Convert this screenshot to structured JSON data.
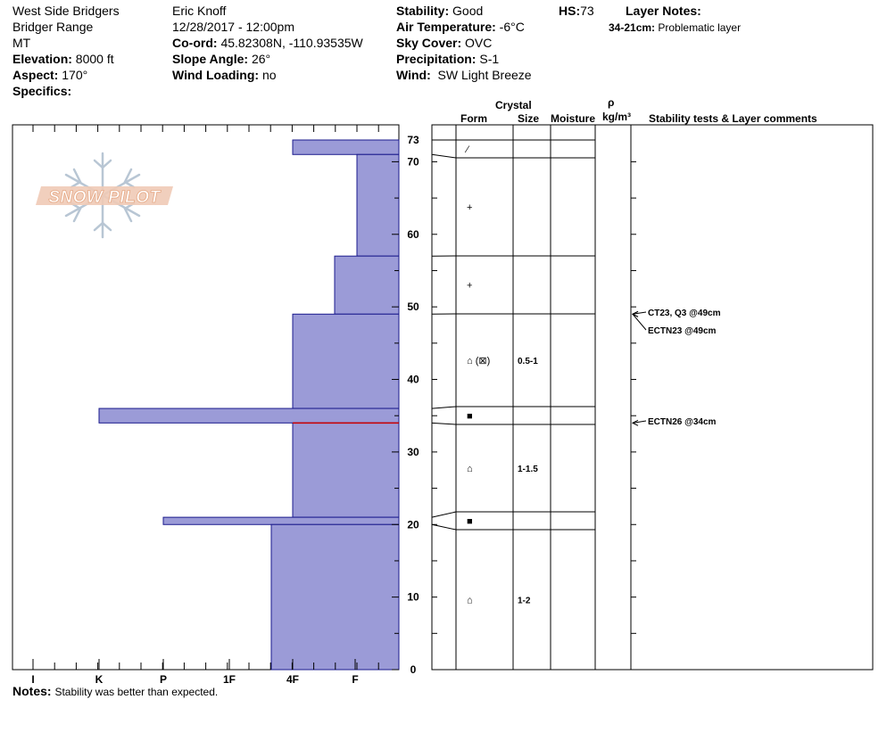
{
  "header": {
    "col1": {
      "location": "West Side Bridgers",
      "range": "Bridger Range",
      "state": "MT",
      "elevation_label": "Elevation:",
      "elevation_value": "8000 ft",
      "aspect_label": "Aspect:",
      "aspect_value": "170°",
      "specifics_label": "Specifics:"
    },
    "col2": {
      "observer": "Eric Knoff",
      "datetime": "12/28/2017 - 12:00pm",
      "coord_label": "Co-ord:",
      "coord_value": "45.82308N, -110.93535W",
      "slope_label": "Slope Angle:",
      "slope_value": "26°",
      "wind_loading_label": "Wind Loading:",
      "wind_loading_value": "no"
    },
    "col3": {
      "stability_label": "Stability:",
      "stability_value": "Good",
      "air_temp_label": "Air Temperature:",
      "air_temp_value": "-6°C",
      "sky_label": "Sky Cover:",
      "sky_value": "OVC",
      "precip_label": "Precipitation:",
      "precip_value": "S-1",
      "wind_label": "Wind:",
      "wind_value": "SW Light Breeze"
    },
    "hs_label": "HS:",
    "hs_value": "73",
    "layer_notes_label": "Layer Notes:",
    "layer_note_range": "34-21cm:",
    "layer_note_text": "Problematic layer"
  },
  "logo_text": "SNOW PILOT",
  "columns": {
    "crystal": "Crystal",
    "form": "Form",
    "size": "Size",
    "moisture": "Moisture",
    "rho": "ρ",
    "density_unit": "kg/m³",
    "stability": "Stability tests & Layer comments"
  },
  "hardness_axis": [
    "I",
    "K",
    "P",
    "1F",
    "4F",
    "F"
  ],
  "height_ticks": [
    "0",
    "10",
    "20",
    "30",
    "40",
    "50",
    "60",
    "70",
    "73"
  ],
  "notes_label": "Notes:",
  "notes_text": "Stability was better than expected.",
  "colors": {
    "profile_fill": "#9b9bd7",
    "profile_stroke": "#1a1a8c",
    "weak_layer": "#cc0000"
  },
  "layers": [
    {
      "top": 73,
      "bottom": 71,
      "hardness": "F+",
      "form": "⁄",
      "size": ""
    },
    {
      "top": 71,
      "bottom": 57,
      "hardness": "F",
      "form": "+",
      "size": ""
    },
    {
      "top": 57,
      "bottom": 49,
      "hardness": "F-",
      "form": "+",
      "size": ""
    },
    {
      "top": 49,
      "bottom": 36,
      "hardness": "4F",
      "form": "⌂ (⊠)",
      "size": "0.5-1"
    },
    {
      "top": 36,
      "bottom": 34,
      "hardness": "K-",
      "form": "■",
      "size": ""
    },
    {
      "top": 34,
      "bottom": 21,
      "hardness": "4F",
      "form": "⌂",
      "size": "1-1.5"
    },
    {
      "top": 21,
      "bottom": 20,
      "hardness": "P",
      "form": "■",
      "size": ""
    },
    {
      "top": 20,
      "bottom": 0,
      "hardness": "4F+",
      "form": "⌂",
      "size": "1-2"
    }
  ],
  "tests": [
    {
      "text": "CT23, Q3 @49cm",
      "depth": 49
    },
    {
      "text": "ECTN23 @49cm",
      "depth": 49
    },
    {
      "text": "ECTN26 @34cm",
      "depth": 34
    }
  ]
}
